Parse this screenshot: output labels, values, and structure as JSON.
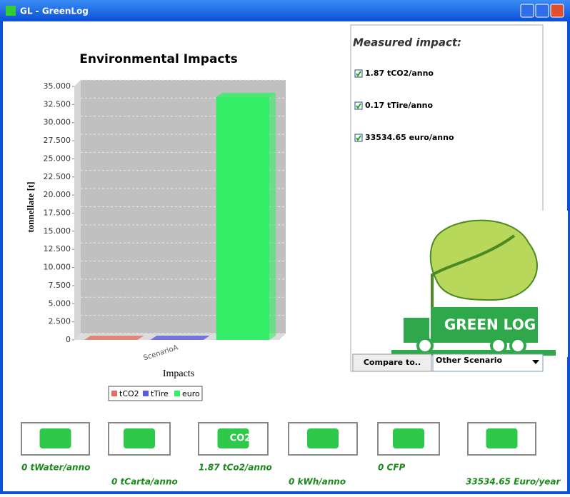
{
  "window": {
    "title": "GL - GreenLog"
  },
  "chart_data": {
    "type": "bar",
    "title": "Environmental Impacts",
    "y_label": "tonnellate [t]",
    "x_label": "Impacts",
    "categories": [
      "ScenarioA"
    ],
    "series": [
      {
        "name": "tCO2",
        "color": "#e07060",
        "values": [
          1.87
        ]
      },
      {
        "name": "tTire",
        "color": "#5a5ae0",
        "values": [
          0.17
        ]
      },
      {
        "name": "euro",
        "color": "#33ee66",
        "values": [
          33534.65
        ]
      }
    ],
    "ylim": [
      0,
      35000
    ],
    "yticks": [
      0,
      {
        "value": 2500,
        "label": "2.500"
      },
      {
        "value": 5000,
        "label": "5.000"
      },
      {
        "value": 7500,
        "label": "7.500"
      },
      {
        "value": 10000,
        "label": "10.000"
      },
      {
        "value": 12500,
        "label": "12.500"
      },
      {
        "value": 15000,
        "label": "15.000"
      },
      {
        "value": 17500,
        "label": "17.500"
      },
      {
        "value": 20000,
        "label": "20.000"
      },
      {
        "value": 22500,
        "label": "22.500"
      },
      {
        "value": 25000,
        "label": "25.000"
      },
      {
        "value": 27500,
        "label": "27.500"
      },
      {
        "value": 30000,
        "label": "30.000"
      },
      {
        "value": 32500,
        "label": "32.500"
      },
      {
        "value": 35000,
        "label": "35.000"
      }
    ],
    "grid": true
  },
  "panel": {
    "title": "Measured impact:",
    "items": [
      "1.87 tCO2/anno",
      "0.17 tTire/anno",
      "33534.65 euro/anno"
    ],
    "logo_text": "GREEN LOG",
    "compare_button": "Compare to..",
    "compare_choice": "Other Scenario"
  },
  "icons": [
    {
      "label": "0 tWater/anno"
    },
    {
      "label": "0 tCarta/anno"
    },
    {
      "label": "1.87 tCo2/anno",
      "badge": "CO2"
    },
    {
      "label": "0 kWh/anno"
    },
    {
      "label": "0 CFP"
    },
    {
      "label": "33534.65 Euro/year"
    }
  ]
}
